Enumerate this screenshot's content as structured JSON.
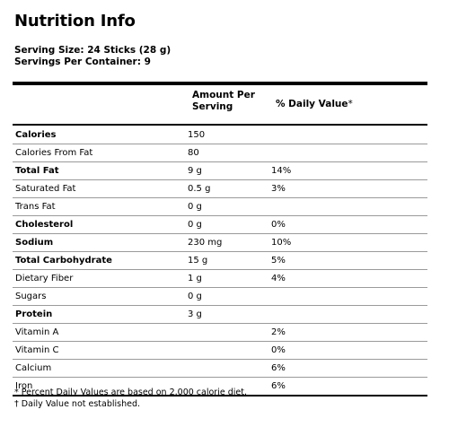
{
  "title": "Nutrition Info",
  "serving_size": "Serving Size: 24 Sticks (28 g)",
  "servings_per_container": "Servings Per Container: 9",
  "headers": {
    "amount_line1": "Amount Per",
    "amount_line2": "Serving",
    "daily_value": "% Daily Value",
    "daily_value_star": "*"
  },
  "rows": [
    {
      "name": "Calories",
      "amount": "150",
      "dv": "",
      "bold": true
    },
    {
      "name": "Calories From Fat",
      "amount": "80",
      "dv": "",
      "bold": false
    },
    {
      "name": "Total Fat",
      "amount": "9 g",
      "dv": "14%",
      "bold": true
    },
    {
      "name": "Saturated Fat",
      "amount": "0.5 g",
      "dv": "3%",
      "bold": false
    },
    {
      "name": "Trans Fat",
      "amount": "0 g",
      "dv": "",
      "bold": false
    },
    {
      "name": "Cholesterol",
      "amount": "0 g",
      "dv": "0%",
      "bold": true
    },
    {
      "name": "Sodium",
      "amount": "230 mg",
      "dv": "10%",
      "bold": true
    },
    {
      "name": "Total Carbohydrate",
      "amount": "15 g",
      "dv": "5%",
      "bold": true
    },
    {
      "name": "Dietary Fiber",
      "amount": "1 g",
      "dv": "4%",
      "bold": false
    },
    {
      "name": "Sugars",
      "amount": "0 g",
      "dv": "",
      "bold": false
    },
    {
      "name": "Protein",
      "amount": "3 g",
      "dv": "",
      "bold": true
    },
    {
      "name": "Vitamin A",
      "amount": "",
      "dv": "2%",
      "bold": false
    },
    {
      "name": "Vitamin C",
      "amount": "",
      "dv": "0%",
      "bold": false
    },
    {
      "name": "Calcium",
      "amount": "",
      "dv": "6%",
      "bold": false
    },
    {
      "name": "Iron",
      "amount": "",
      "dv": "6%",
      "bold": false
    }
  ],
  "footnotes": [
    "* Percent Daily Values are based on 2,000 calorie diet.",
    "† Daily Value not established."
  ]
}
